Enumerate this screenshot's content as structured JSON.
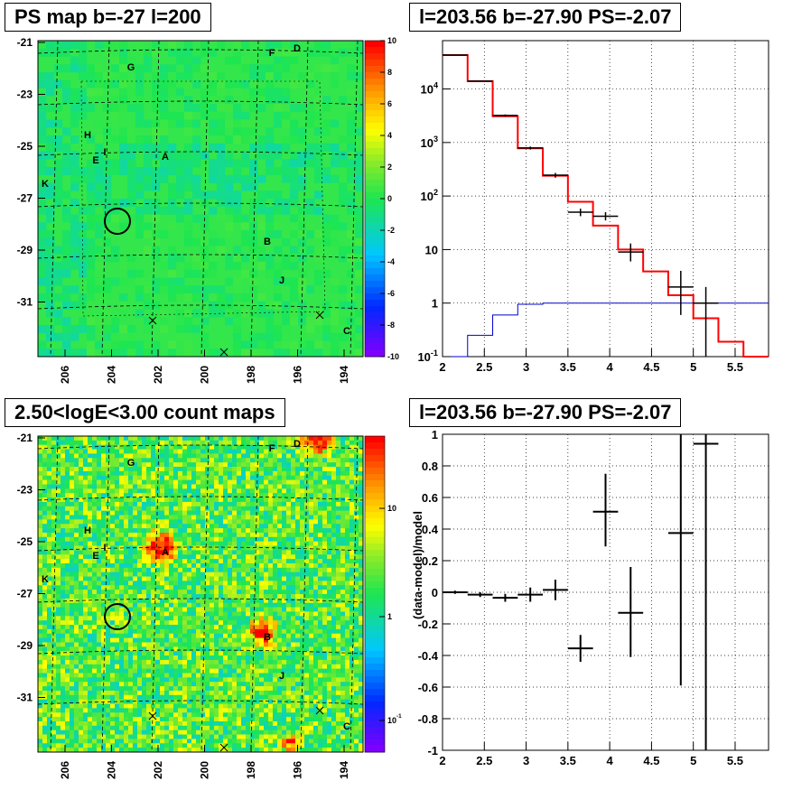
{
  "panels": {
    "tl": {
      "title": "PS map b=-27 l=200"
    },
    "tr": {
      "title": "l=203.56 b=-27.90 PS=-2.07"
    },
    "bl": {
      "title": "2.50<logE<3.00 count maps"
    },
    "br": {
      "title": "l=203.56 b=-27.90 PS=-2.07"
    }
  },
  "chart_data": [
    {
      "type": "heatmap",
      "title": "PS map b=-27 l=200",
      "colormap": "rainbow",
      "background_color": "#33e64c",
      "x_ticks": [
        "206",
        "204",
        "202",
        "200",
        "198",
        "196",
        "194"
      ],
      "y_ticks": [
        "-21",
        "-23",
        "-25",
        "-27",
        "-29",
        "-31"
      ],
      "colorbar_ticks": [
        "10",
        "8",
        "6",
        "4",
        "2",
        "0",
        "-2",
        "-4",
        "-6",
        "-8",
        "-10"
      ],
      "source_labels": [
        "G",
        "F",
        "D",
        "H",
        "I",
        "E",
        "A",
        "K",
        "B",
        "J",
        "C"
      ],
      "marker": "circle"
    },
    {
      "type": "line",
      "title": "l=203.56 b=-27.90 PS=-2.07",
      "xlim": [
        2,
        5.9
      ],
      "ylim": [
        0.1,
        80000
      ],
      "ylog": true,
      "x_ticks": [
        "2",
        "2.5",
        "3",
        "3.5",
        "4",
        "4.5",
        "5",
        "5.5"
      ],
      "y_ticks": [
        "10^-1",
        "1",
        "10",
        "10^2",
        "10^3",
        "10^4"
      ],
      "grid": true,
      "series": [
        {
          "color": "#ff0000",
          "style": "step",
          "edges": [
            2.0,
            2.3,
            2.6,
            2.9,
            3.2,
            3.5,
            3.8,
            4.1,
            4.4,
            4.7,
            5.0,
            5.3,
            5.6,
            5.9
          ],
          "values": [
            43000,
            14000,
            3100,
            780,
            240,
            78,
            28,
            10,
            3.9,
            1.4,
            0.52,
            0.19,
            0.1
          ]
        },
        {
          "color": "#0000cc",
          "style": "step",
          "edges": [
            2.0,
            2.3,
            2.6,
            2.9,
            3.2,
            3.5,
            3.8,
            4.1,
            4.4,
            4.7,
            5.0,
            5.3,
            5.6,
            5.9
          ],
          "values": [
            0.1,
            0.25,
            0.6,
            0.95,
            1.0,
            1.0,
            1.0,
            1.0,
            1.0,
            1.0,
            1.0,
            1.0,
            1.0
          ]
        },
        {
          "color": "#000000",
          "style": "errorbar",
          "points": [
            {
              "x": 2.15,
              "y": 43000,
              "xerr": 0.15,
              "lo": 42000,
              "hi": 44000
            },
            {
              "x": 2.45,
              "y": 14000,
              "xerr": 0.15,
              "lo": 13700,
              "hi": 14300
            },
            {
              "x": 2.75,
              "y": 3200,
              "xerr": 0.15,
              "lo": 3050,
              "hi": 3350
            },
            {
              "x": 3.05,
              "y": 790,
              "xerr": 0.15,
              "lo": 740,
              "hi": 840
            },
            {
              "x": 3.35,
              "y": 245,
              "xerr": 0.15,
              "lo": 220,
              "hi": 270
            },
            {
              "x": 3.65,
              "y": 50,
              "xerr": 0.15,
              "lo": 42,
              "hi": 58
            },
            {
              "x": 3.95,
              "y": 42,
              "xerr": 0.15,
              "lo": 35,
              "hi": 50
            },
            {
              "x": 4.25,
              "y": 9,
              "xerr": 0.15,
              "lo": 6,
              "hi": 13
            },
            {
              "x": 4.85,
              "y": 2,
              "xerr": 0.15,
              "lo": 0.6,
              "hi": 4
            },
            {
              "x": 5.15,
              "y": 1,
              "xerr": 0.15,
              "lo": 0.1,
              "hi": 2
            }
          ]
        }
      ]
    },
    {
      "type": "heatmap",
      "title": "2.50<logE<3.00 count maps",
      "colormap": "rainbow",
      "background_color": "#c8e62a",
      "x_ticks": [
        "206",
        "204",
        "202",
        "200",
        "198",
        "196",
        "194"
      ],
      "y_ticks": [
        "-21",
        "-23",
        "-25",
        "-27",
        "-29",
        "-31"
      ],
      "colorbar_ticks": [
        "10",
        "1",
        "10^-1"
      ],
      "source_labels": [
        "G",
        "F",
        "D",
        "H",
        "I",
        "E",
        "A",
        "K",
        "B",
        "J",
        "C"
      ],
      "marker": "circle"
    },
    {
      "type": "scatter",
      "title": "l=203.56 b=-27.90 PS=-2.07",
      "ylabel": "(data-model)/model",
      "xlim": [
        2,
        5.9
      ],
      "ylim": [
        -1,
        1
      ],
      "x_ticks": [
        "2",
        "2.5",
        "3",
        "3.5",
        "4",
        "4.5",
        "5",
        "5.5"
      ],
      "y_ticks": [
        "-1",
        "-0.8",
        "-0.6",
        "-0.4",
        "-0.2",
        "0",
        "0.2",
        "0.4",
        "0.6",
        "0.8",
        "1"
      ],
      "grid": true,
      "points": [
        {
          "x": 2.15,
          "y": 0.0,
          "xerr": 0.15,
          "lo": -0.01,
          "hi": 0.01
        },
        {
          "x": 2.45,
          "y": -0.015,
          "xerr": 0.15,
          "lo": -0.03,
          "hi": 0.0
        },
        {
          "x": 2.75,
          "y": -0.035,
          "xerr": 0.15,
          "lo": -0.06,
          "hi": -0.01
        },
        {
          "x": 3.05,
          "y": -0.015,
          "xerr": 0.15,
          "lo": -0.06,
          "hi": 0.03
        },
        {
          "x": 3.35,
          "y": 0.015,
          "xerr": 0.15,
          "lo": -0.05,
          "hi": 0.08
        },
        {
          "x": 3.65,
          "y": -0.355,
          "xerr": 0.15,
          "lo": -0.44,
          "hi": -0.27
        },
        {
          "x": 3.95,
          "y": 0.51,
          "xerr": 0.15,
          "lo": 0.29,
          "hi": 0.75
        },
        {
          "x": 4.25,
          "y": -0.13,
          "xerr": 0.15,
          "lo": -0.41,
          "hi": 0.16
        },
        {
          "x": 4.85,
          "y": 0.375,
          "xerr": 0.15,
          "lo": -0.59,
          "hi": 1.0
        },
        {
          "x": 5.15,
          "y": 0.94,
          "xerr": 0.15,
          "lo": -1.0,
          "hi": 1.0
        }
      ]
    }
  ]
}
